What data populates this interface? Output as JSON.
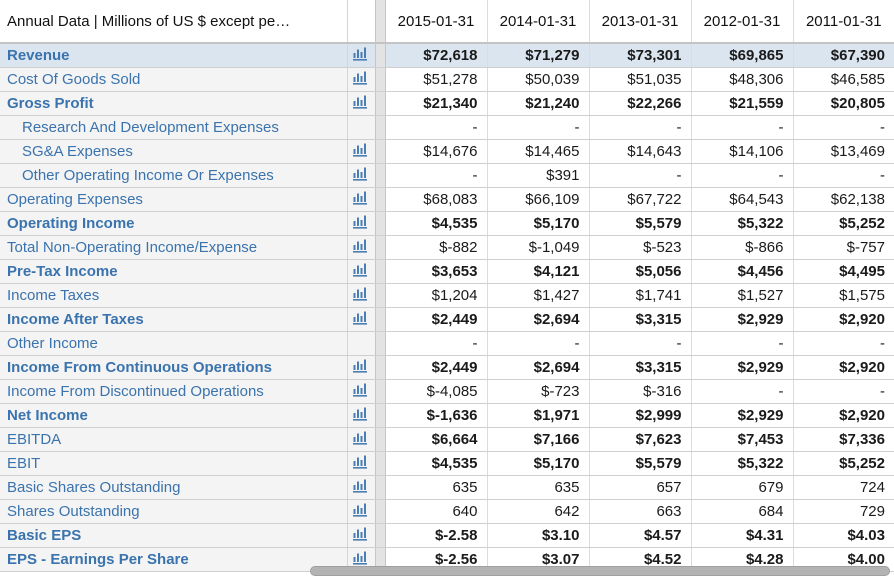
{
  "table": {
    "header": {
      "label": "Annual Data | Millions of US $ except pe…",
      "columns": [
        "2015-01-31",
        "2014-01-31",
        "2013-01-31",
        "2012-01-31",
        "2011-01-31"
      ]
    },
    "rows": [
      {
        "label": "Revenue",
        "bold_label": true,
        "bold_values": true,
        "indent": false,
        "chart_icon": true,
        "highlight": true,
        "values": [
          "$72,618",
          "$71,279",
          "$73,301",
          "$69,865",
          "$67,390"
        ]
      },
      {
        "label": "Cost Of Goods Sold",
        "bold_label": false,
        "bold_values": false,
        "indent": false,
        "chart_icon": true,
        "highlight": false,
        "values": [
          "$51,278",
          "$50,039",
          "$51,035",
          "$48,306",
          "$46,585"
        ]
      },
      {
        "label": "Gross Profit",
        "bold_label": true,
        "bold_values": true,
        "indent": false,
        "chart_icon": true,
        "highlight": false,
        "values": [
          "$21,340",
          "$21,240",
          "$22,266",
          "$21,559",
          "$20,805"
        ]
      },
      {
        "label": "Research And Development Expenses",
        "bold_label": false,
        "bold_values": false,
        "indent": true,
        "chart_icon": false,
        "highlight": false,
        "values": [
          "-",
          "-",
          "-",
          "-",
          "-"
        ]
      },
      {
        "label": "SG&A Expenses",
        "bold_label": false,
        "bold_values": false,
        "indent": true,
        "chart_icon": true,
        "highlight": false,
        "values": [
          "$14,676",
          "$14,465",
          "$14,643",
          "$14,106",
          "$13,469"
        ]
      },
      {
        "label": "Other Operating Income Or Expenses",
        "bold_label": false,
        "bold_values": false,
        "indent": true,
        "chart_icon": true,
        "highlight": false,
        "values": [
          "-",
          "$391",
          "-",
          "-",
          "-"
        ]
      },
      {
        "label": "Operating Expenses",
        "bold_label": false,
        "bold_values": false,
        "indent": false,
        "chart_icon": true,
        "highlight": false,
        "values": [
          "$68,083",
          "$66,109",
          "$67,722",
          "$64,543",
          "$62,138"
        ]
      },
      {
        "label": "Operating Income",
        "bold_label": true,
        "bold_values": true,
        "indent": false,
        "chart_icon": true,
        "highlight": false,
        "values": [
          "$4,535",
          "$5,170",
          "$5,579",
          "$5,322",
          "$5,252"
        ]
      },
      {
        "label": "Total Non-Operating Income/Expense",
        "bold_label": false,
        "bold_values": false,
        "indent": false,
        "chart_icon": true,
        "highlight": false,
        "values": [
          "$-882",
          "$-1,049",
          "$-523",
          "$-866",
          "$-757"
        ]
      },
      {
        "label": "Pre-Tax Income",
        "bold_label": true,
        "bold_values": true,
        "indent": false,
        "chart_icon": true,
        "highlight": false,
        "values": [
          "$3,653",
          "$4,121",
          "$5,056",
          "$4,456",
          "$4,495"
        ]
      },
      {
        "label": "Income Taxes",
        "bold_label": false,
        "bold_values": false,
        "indent": false,
        "chart_icon": true,
        "highlight": false,
        "values": [
          "$1,204",
          "$1,427",
          "$1,741",
          "$1,527",
          "$1,575"
        ]
      },
      {
        "label": "Income After Taxes",
        "bold_label": true,
        "bold_values": true,
        "indent": false,
        "chart_icon": true,
        "highlight": false,
        "values": [
          "$2,449",
          "$2,694",
          "$3,315",
          "$2,929",
          "$2,920"
        ]
      },
      {
        "label": "Other Income",
        "bold_label": false,
        "bold_values": false,
        "indent": false,
        "chart_icon": false,
        "highlight": false,
        "values": [
          "-",
          "-",
          "-",
          "-",
          "-"
        ]
      },
      {
        "label": "Income From Continuous Operations",
        "bold_label": true,
        "bold_values": true,
        "indent": false,
        "chart_icon": true,
        "highlight": false,
        "values": [
          "$2,449",
          "$2,694",
          "$3,315",
          "$2,929",
          "$2,920"
        ]
      },
      {
        "label": "Income From Discontinued Operations",
        "bold_label": false,
        "bold_values": false,
        "indent": false,
        "chart_icon": true,
        "highlight": false,
        "values": [
          "$-4,085",
          "$-723",
          "$-316",
          "-",
          "-"
        ]
      },
      {
        "label": "Net Income",
        "bold_label": true,
        "bold_values": true,
        "indent": false,
        "chart_icon": true,
        "highlight": false,
        "values": [
          "$-1,636",
          "$1,971",
          "$2,999",
          "$2,929",
          "$2,920"
        ]
      },
      {
        "label": "EBITDA",
        "bold_label": false,
        "bold_values": true,
        "indent": false,
        "chart_icon": true,
        "highlight": false,
        "values": [
          "$6,664",
          "$7,166",
          "$7,623",
          "$7,453",
          "$7,336"
        ]
      },
      {
        "label": "EBIT",
        "bold_label": false,
        "bold_values": true,
        "indent": false,
        "chart_icon": true,
        "highlight": false,
        "values": [
          "$4,535",
          "$5,170",
          "$5,579",
          "$5,322",
          "$5,252"
        ]
      },
      {
        "label": "Basic Shares Outstanding",
        "bold_label": false,
        "bold_values": false,
        "indent": false,
        "chart_icon": true,
        "highlight": false,
        "values": [
          "635",
          "635",
          "657",
          "679",
          "724"
        ]
      },
      {
        "label": "Shares Outstanding",
        "bold_label": false,
        "bold_values": false,
        "indent": false,
        "chart_icon": true,
        "highlight": false,
        "values": [
          "640",
          "642",
          "663",
          "684",
          "729"
        ]
      },
      {
        "label": "Basic EPS",
        "bold_label": true,
        "bold_values": true,
        "indent": false,
        "chart_icon": true,
        "highlight": false,
        "values": [
          "$-2.58",
          "$3.10",
          "$4.57",
          "$4.31",
          "$4.03"
        ]
      },
      {
        "label": "EPS - Earnings Per Share",
        "bold_label": true,
        "bold_values": true,
        "indent": false,
        "chart_icon": true,
        "highlight": false,
        "values": [
          "$-2.56",
          "$3.07",
          "$4.52",
          "$4.28",
          "$4.00"
        ]
      }
    ]
  },
  "icons": {
    "chart": "bar-chart-icon"
  },
  "colors": {
    "link_blue": "#3a73ad",
    "row_highlight": "#dbe5f0",
    "frozen_pane_bg": "#f4f4f4",
    "divider_bg": "#e3e3e3",
    "grid_line": "#cfcfcf",
    "scrollbar_thumb": "#b3b3b3",
    "value_text": "#1a1a1a"
  }
}
